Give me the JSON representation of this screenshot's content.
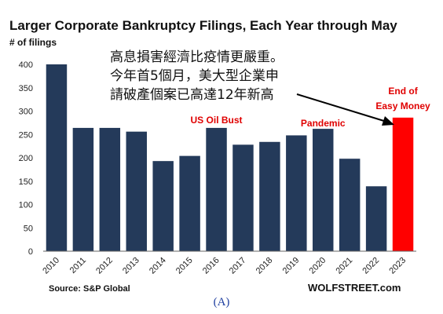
{
  "chart_data": {
    "type": "bar",
    "title": "Larger Corporate Bankruptcy Filings, Each Year through May",
    "ylabel": "# of filings",
    "xlabel": "",
    "ylim": [
      0,
      400
    ],
    "yticks": [
      0,
      50,
      100,
      150,
      200,
      250,
      300,
      350,
      400
    ],
    "grid": false,
    "categories": [
      "2010",
      "2011",
      "2012",
      "2013",
      "2014",
      "2015",
      "2016",
      "2017",
      "2018",
      "2019",
      "2020",
      "2021",
      "2022",
      "2023"
    ],
    "values": [
      400,
      264,
      264,
      256,
      193,
      204,
      264,
      228,
      234,
      248,
      262,
      198,
      139,
      286
    ],
    "colors": {
      "default": "#243a5a",
      "highlight": "#ff0000",
      "highlight_category": "2023",
      "annotation": "#e00000"
    },
    "annotations": [
      {
        "text": "US Oil Bust",
        "category": "2016"
      },
      {
        "text": "Pandemic",
        "category": "2020"
      },
      {
        "text": [
          "End of",
          "Easy Money"
        ],
        "category": "2023"
      }
    ],
    "overlay_text": [
      "高息損害經濟比疫情更嚴重。",
      "今年首5個月，美大型企業申",
      "請破產個案已高達12年新高"
    ],
    "source": "Source: S&P Global",
    "watermark": "WOLFSTREET.com",
    "caption": "(A)"
  }
}
